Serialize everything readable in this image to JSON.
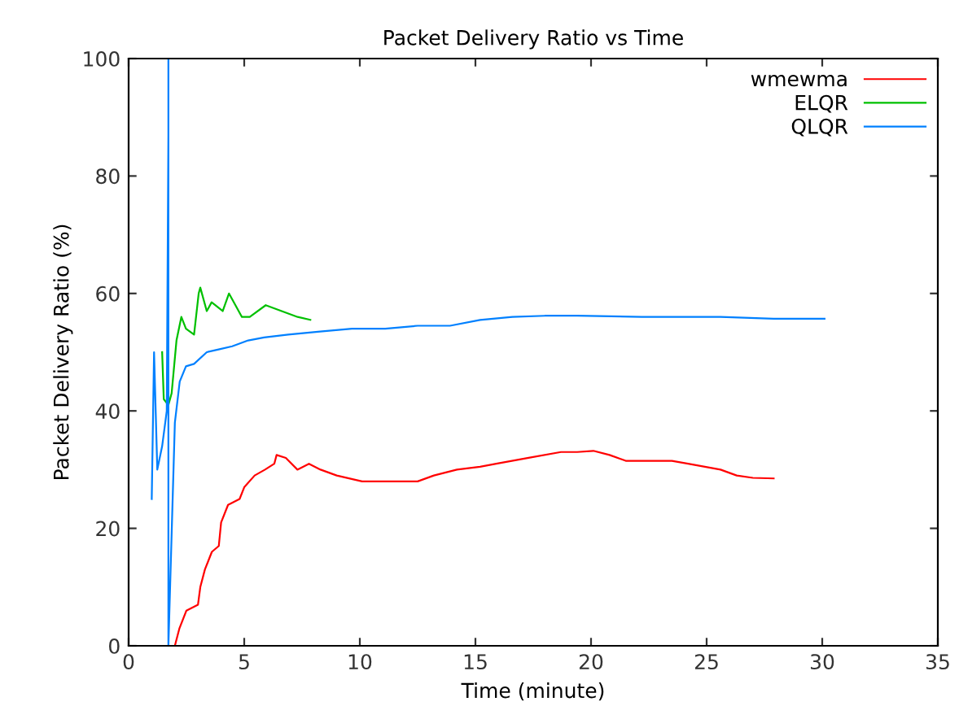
{
  "chart_data": {
    "type": "line",
    "title": "Packet Delivery Ratio vs Time",
    "xlabel": "Time (minute)",
    "ylabel": "Packet Delivery Ratio (%)",
    "xlim": [
      0,
      35
    ],
    "xticks": [
      0,
      5,
      10,
      15,
      20,
      25,
      30,
      35
    ],
    "ylim": [
      0,
      100
    ],
    "yticks": [
      0,
      20,
      40,
      60,
      80,
      100
    ],
    "grid": false,
    "legend": "top right",
    "marker": "none",
    "line_style": "solid",
    "series": [
      {
        "name": "wmewma",
        "color": "#ff0000",
        "x": [
          2.0,
          2.2,
          2.5,
          3.0,
          3.1,
          3.3,
          3.6,
          3.9,
          4.0,
          4.3,
          4.8,
          5.0,
          5.45,
          5.9,
          6.3,
          6.4,
          6.8,
          7.3,
          7.8,
          8.3,
          9.0,
          10.1,
          11.1,
          12.5,
          13.2,
          14.2,
          15.2,
          15.9,
          17.3,
          18.7,
          19.4,
          20.1,
          20.8,
          21.5,
          22.8,
          23.5,
          24.2,
          25.6,
          26.3,
          27.0,
          27.9
        ],
        "values": [
          0,
          3,
          6,
          7,
          10,
          13,
          16,
          17,
          21,
          24,
          25,
          27,
          29,
          30,
          31,
          32.5,
          32,
          30,
          31,
          30,
          29,
          28,
          28,
          28,
          29,
          30,
          30.5,
          31,
          32,
          33,
          33,
          33.2,
          32.5,
          31.5,
          31.5,
          31.5,
          31,
          30,
          29,
          28.6,
          28.5
        ]
      },
      {
        "name": "ELQR",
        "color": "#00c000",
        "x": [
          1.45,
          1.52,
          1.72,
          1.86,
          2.07,
          2.28,
          2.48,
          2.83,
          3.03,
          3.1,
          3.38,
          3.59,
          4.07,
          4.34,
          4.9,
          5.24,
          5.93,
          6.62,
          7.31,
          7.86
        ],
        "values": [
          50,
          42,
          41,
          43,
          52,
          56,
          54,
          53,
          60,
          61,
          57,
          58.5,
          57,
          60,
          56,
          56,
          58,
          57,
          56,
          55.5
        ]
      },
      {
        "name": "QLQR",
        "color": "#0080ff",
        "x": [
          1.0,
          1.1,
          1.24,
          1.45,
          1.65,
          1.72,
          1.72,
          1.72,
          2.0,
          2.21,
          2.48,
          2.83,
          3.38,
          3.93,
          4.48,
          5.17,
          5.86,
          6.9,
          8.28,
          9.66,
          11.1,
          12.5,
          13.9,
          15.2,
          16.6,
          18.0,
          19.4,
          22.2,
          25.6,
          27.9,
          30.1
        ],
        "values": [
          25,
          50,
          30,
          34,
          40,
          87,
          100,
          0,
          38,
          45,
          47.6,
          48,
          50,
          50.5,
          51,
          52,
          52.5,
          53,
          53.5,
          54,
          54,
          54.5,
          54.5,
          55.5,
          56,
          56.2,
          56.2,
          56,
          56,
          55.7,
          55.7
        ]
      }
    ]
  }
}
